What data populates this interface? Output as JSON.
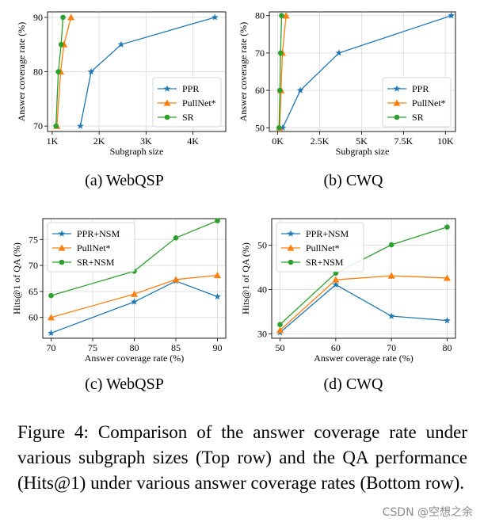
{
  "chart_data": [
    {
      "type": "line",
      "title": "",
      "xlabel": "Subgraph size",
      "ylabel": "Answer coverage rate (%)",
      "xlim": [
        900,
        4700
      ],
      "ylim": [
        69,
        91
      ],
      "xticks": [
        1000,
        2000,
        3000,
        4000
      ],
      "xtick_labels": [
        "1K",
        "2K",
        "3K",
        "4K"
      ],
      "yticks": [
        70,
        80,
        90
      ],
      "ytick_labels": [
        "70",
        "80",
        "90"
      ],
      "legend_position": "lower-right",
      "series": [
        {
          "name": "PPR",
          "color": "#1f77b4",
          "marker": "star",
          "x": [
            1600,
            1830,
            2470,
            4470
          ],
          "y": [
            70,
            80,
            85,
            90
          ]
        },
        {
          "name": "PullNet*",
          "color": "#ff7f0e",
          "marker": "triangle",
          "x": [
            1100,
            1180,
            1250,
            1400
          ],
          "y": [
            70,
            80,
            85,
            90
          ]
        },
        {
          "name": "SR",
          "color": "#2ca02c",
          "marker": "circle",
          "x": [
            1080,
            1130,
            1190,
            1230
          ],
          "y": [
            70,
            80,
            85,
            90
          ]
        }
      ],
      "subcaption": "(a)  WebQSP"
    },
    {
      "type": "line",
      "title": "",
      "xlabel": "Subgraph size",
      "ylabel": "Answer coverage rate (%)",
      "xlim": [
        -500,
        10600
      ],
      "ylim": [
        49,
        81
      ],
      "xticks": [
        0,
        2500,
        5000,
        7500,
        10000
      ],
      "xtick_labels": [
        "0K",
        "2.5K",
        "5K",
        "7.5K",
        "10K"
      ],
      "yticks": [
        50,
        60,
        70,
        80
      ],
      "ytick_labels": [
        "50",
        "60",
        "70",
        "80"
      ],
      "legend_position": "lower-right",
      "series": [
        {
          "name": "PPR",
          "color": "#1f77b4",
          "marker": "star",
          "x": [
            300,
            1350,
            3650,
            10350
          ],
          "y": [
            50,
            60,
            70,
            80
          ]
        },
        {
          "name": "PullNet*",
          "color": "#ff7f0e",
          "marker": "triangle",
          "x": [
            120,
            200,
            280,
            500
          ],
          "y": [
            50,
            60,
            70,
            80
          ]
        },
        {
          "name": "SR",
          "color": "#2ca02c",
          "marker": "circle",
          "x": [
            80,
            130,
            170,
            230
          ],
          "y": [
            50,
            60,
            70,
            80
          ]
        }
      ],
      "subcaption": "(b)  CWQ"
    },
    {
      "type": "line",
      "title": "",
      "xlabel": "Answer coverage rate (%)",
      "ylabel": "Hits@1 of QA (%)",
      "xlim": [
        69,
        91
      ],
      "ylim": [
        56,
        79
      ],
      "xticks": [
        70,
        75,
        80,
        85,
        90
      ],
      "xtick_labels": [
        "70",
        "75",
        "80",
        "85",
        "90"
      ],
      "yticks": [
        60,
        65,
        70,
        75
      ],
      "ytick_labels": [
        "60",
        "65",
        "70",
        "75"
      ],
      "legend_position": "upper-left",
      "series": [
        {
          "name": "PPR+NSM",
          "color": "#1f77b4",
          "marker": "star",
          "x": [
            70,
            80,
            85,
            90
          ],
          "y": [
            57,
            63,
            67,
            64
          ]
        },
        {
          "name": "PullNet*",
          "color": "#ff7f0e",
          "marker": "triangle",
          "x": [
            70,
            80,
            85,
            90
          ],
          "y": [
            60,
            64.5,
            67.3,
            68.1
          ]
        },
        {
          "name": "SR+NSM",
          "color": "#2ca02c",
          "marker": "circle",
          "x": [
            70,
            80,
            85,
            90
          ],
          "y": [
            64.2,
            68.9,
            75.3,
            78.6
          ]
        }
      ],
      "subcaption": "(c)  WebQSP"
    },
    {
      "type": "line",
      "title": "",
      "xlabel": "Answer coverage rate (%)",
      "ylabel": "Hits@1 of QA (%)",
      "xlim": [
        48.5,
        81.5
      ],
      "ylim": [
        29,
        56
      ],
      "xticks": [
        50,
        60,
        70,
        80
      ],
      "xtick_labels": [
        "50",
        "60",
        "70",
        "80"
      ],
      "yticks": [
        30,
        40,
        50
      ],
      "ytick_labels": [
        "30",
        "40",
        "50"
      ],
      "legend_position": "upper-left",
      "series": [
        {
          "name": "PPR+NSM",
          "color": "#1f77b4",
          "marker": "star",
          "x": [
            50,
            60,
            70,
            80
          ],
          "y": [
            30.3,
            41.1,
            34,
            33
          ]
        },
        {
          "name": "PullNet*",
          "color": "#ff7f0e",
          "marker": "triangle",
          "x": [
            50,
            60,
            70,
            80
          ],
          "y": [
            30.8,
            42.2,
            43.1,
            42.6
          ]
        },
        {
          "name": "SR+NSM",
          "color": "#2ca02c",
          "marker": "circle",
          "x": [
            50,
            60,
            70,
            80
          ],
          "y": [
            32.1,
            43.7,
            50.1,
            54.1
          ]
        }
      ],
      "subcaption": "(d)  CWQ"
    }
  ],
  "caption": {
    "label": "Figure 4:",
    "text": "Comparison of the answer coverage rate under various subgraph sizes (Top row) and the QA performance (Hits@1) under various answer coverage rates (Bottom row)."
  },
  "watermark": "CSDN @空想之余"
}
